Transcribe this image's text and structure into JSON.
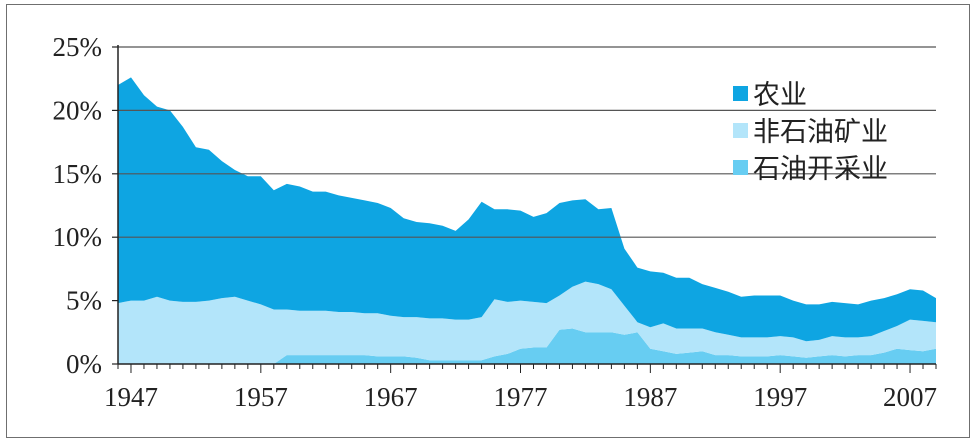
{
  "chart_data": {
    "type": "area",
    "stacked": true,
    "title": "",
    "xlabel": "",
    "ylabel": "",
    "x": [
      1946,
      1947,
      1948,
      1949,
      1950,
      1951,
      1952,
      1953,
      1954,
      1955,
      1956,
      1957,
      1958,
      1959,
      1960,
      1961,
      1962,
      1963,
      1964,
      1965,
      1966,
      1967,
      1968,
      1969,
      1970,
      1971,
      1972,
      1973,
      1974,
      1975,
      1976,
      1977,
      1978,
      1979,
      1980,
      1981,
      1982,
      1983,
      1984,
      1985,
      1986,
      1987,
      1988,
      1989,
      1990,
      1991,
      1992,
      1993,
      1994,
      1995,
      1996,
      1997,
      1998,
      1999,
      2000,
      2001,
      2002,
      2003,
      2004,
      2005,
      2006,
      2007,
      2008,
      2009
    ],
    "xlim": [
      1946,
      2009
    ],
    "ylim": [
      0,
      25
    ],
    "x_ticks": [
      "1947",
      "1957",
      "1967",
      "1977",
      "1987",
      "1997",
      "2007"
    ],
    "x_tick_values": [
      1947,
      1957,
      1967,
      1977,
      1987,
      1997,
      2007
    ],
    "y_ticks": [
      "0%",
      "5%",
      "10%",
      "15%",
      "20%",
      "25%"
    ],
    "y_tick_values": [
      0,
      5,
      10,
      15,
      20,
      25
    ],
    "grid": "horizontal lines at 10%, 15%, 20%, 25%",
    "legend_position": "right",
    "colors": {
      "农业": "#0ea5e2",
      "非石油矿业": "#b3e5fa",
      "石油开采业": "#67cdf2",
      "frame": "#6f6f6f",
      "axis": "#222222",
      "grid": "#555555"
    },
    "series": [
      {
        "name": "石油开采业",
        "values": [
          0,
          0,
          0,
          0,
          0,
          0,
          0,
          0,
          0,
          0,
          0,
          0,
          0,
          0.7,
          0.7,
          0.7,
          0.7,
          0.7,
          0.7,
          0.7,
          0.6,
          0.6,
          0.6,
          0.5,
          0.3,
          0.3,
          0.3,
          0.3,
          0.3,
          0.6,
          0.8,
          1.2,
          1.3,
          1.3,
          2.7,
          2.8,
          2.5,
          2.5,
          2.5,
          2.3,
          2.5,
          1.2,
          1.0,
          0.8,
          0.9,
          1.0,
          0.7,
          0.7,
          0.6,
          0.6,
          0.6,
          0.7,
          0.6,
          0.5,
          0.6,
          0.7,
          0.6,
          0.7,
          0.7,
          0.9,
          1.2,
          1.1,
          1.0,
          1.2
        ]
      },
      {
        "name": "非石油矿业",
        "values": [
          4.8,
          5.0,
          5.0,
          5.3,
          5.0,
          4.9,
          4.9,
          5.0,
          5.2,
          5.3,
          5.0,
          4.7,
          4.3,
          3.6,
          3.5,
          3.5,
          3.5,
          3.4,
          3.4,
          3.3,
          3.4,
          3.2,
          3.1,
          3.2,
          3.3,
          3.3,
          3.2,
          3.2,
          3.4,
          4.5,
          4.1,
          3.8,
          3.6,
          3.5,
          2.7,
          3.3,
          4.0,
          3.8,
          3.4,
          2.3,
          0.8,
          1.7,
          2.2,
          2.0,
          1.9,
          1.8,
          1.8,
          1.6,
          1.5,
          1.5,
          1.5,
          1.5,
          1.5,
          1.3,
          1.3,
          1.5,
          1.5,
          1.4,
          1.5,
          1.7,
          1.8,
          2.4,
          2.4,
          2.1
        ]
      },
      {
        "name": "农业",
        "values": [
          17.2,
          17.6,
          16.2,
          15.0,
          15.0,
          13.8,
          12.2,
          11.9,
          10.8,
          10.0,
          9.8,
          10.1,
          9.4,
          9.9,
          9.8,
          9.4,
          9.4,
          9.2,
          9.0,
          8.9,
          8.7,
          8.5,
          7.8,
          7.5,
          7.5,
          7.3,
          7.0,
          7.9,
          9.1,
          7.1,
          7.3,
          7.1,
          6.7,
          7.1,
          7.3,
          6.8,
          6.5,
          5.9,
          6.4,
          4.5,
          4.3,
          4.4,
          4.0,
          4.0,
          4.0,
          3.5,
          3.5,
          3.4,
          3.2,
          3.3,
          3.3,
          3.2,
          2.9,
          2.9,
          2.8,
          2.7,
          2.7,
          2.6,
          2.8,
          2.6,
          2.5,
          2.4,
          2.4,
          1.9
        ]
      }
    ]
  },
  "legend": {
    "items": [
      {
        "label": "农业",
        "color": "#0ea5e2"
      },
      {
        "label": "非石油矿业",
        "color": "#b3e5fa"
      },
      {
        "label": "石油开采业",
        "color": "#67cdf2"
      }
    ]
  }
}
